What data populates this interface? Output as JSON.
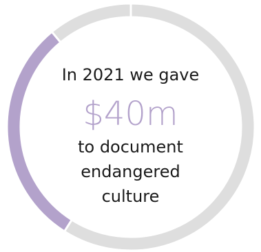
{
  "chart_data": {
    "type": "pie",
    "style": "donut",
    "categories": [
      "segment-1",
      "segment-2",
      "segment-3"
    ],
    "values": [
      59,
      30,
      11
    ],
    "colors": [
      "#dedede",
      "#b3a2cb",
      "#dedede"
    ],
    "title": "",
    "legend": "none"
  },
  "center": {
    "line_top": "In 2021 we gave",
    "amount": "$40m",
    "line_1": "to document",
    "line_2": "endangered",
    "line_3": "culture"
  },
  "colors": {
    "accent": "#b3a2cb",
    "track": "#dedede",
    "text": "#1a1a1a"
  }
}
